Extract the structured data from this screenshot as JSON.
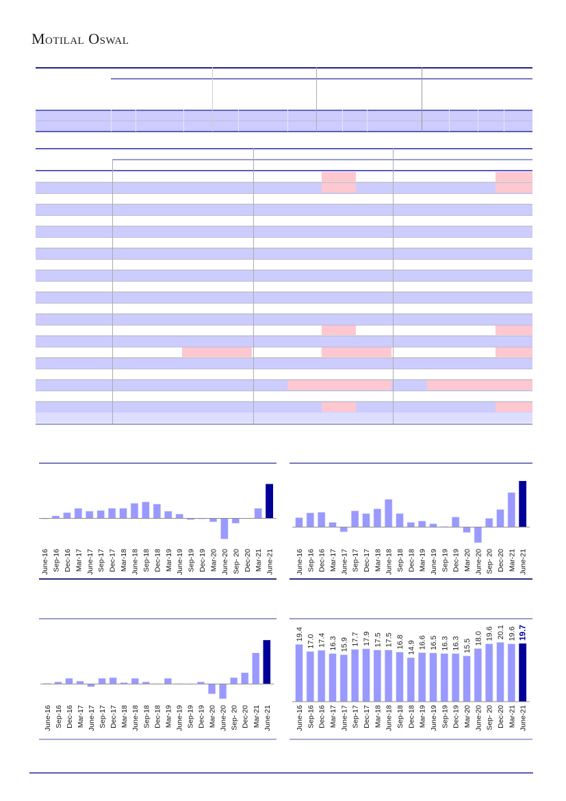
{
  "header": {
    "brand": "Motilal Oswal"
  },
  "colors": {
    "bar": "#9999ff",
    "highlight": "#000099",
    "row_band": "#ccccff",
    "alert_cell": "#ffc7d0",
    "rule": "#5b5bb5"
  },
  "chart_data": [
    {
      "type": "bar",
      "title": "",
      "categories": [
        "June-16",
        "Sep-16",
        "Dec-16",
        "Mar-17",
        "June-17",
        "Sep-17",
        "Dec-17",
        "Mar-18",
        "June-18",
        "Sep-18",
        "Dec-18",
        "Mar-19",
        "June-19",
        "Sep-19",
        "Dec-19",
        "Mar-20",
        "June-20",
        "Sep- 20",
        "Dec-20",
        "Mar-21",
        "June-21"
      ],
      "values": [
        -1,
        3.5,
        8,
        14,
        10,
        11,
        14,
        14,
        21,
        23,
        20,
        10,
        6,
        -2,
        -1,
        -5,
        -29,
        -7,
        0,
        14,
        48
      ],
      "xlabel": "",
      "ylabel": "",
      "ylim": [
        -35,
        55
      ],
      "grid": false,
      "legend": "none"
    },
    {
      "type": "bar",
      "title": "",
      "categories": [
        "June-16",
        "Sep-16",
        "Dec-16",
        "Mar-17",
        "June-17",
        "Sep-17",
        "Dec-17",
        "Mar-18",
        "June-18",
        "Sep-18",
        "Dec-18",
        "Mar-19",
        "June-19",
        "Sep-19",
        "Dec-19",
        "Mar-20",
        "June-20",
        "Sep- 20",
        "Dec-20",
        "Mar-21",
        "June-21"
      ],
      "values": [
        14,
        21,
        22,
        7,
        -7,
        24,
        20,
        27,
        41,
        20,
        7,
        9,
        5,
        1,
        15,
        -8,
        -23,
        13,
        26,
        51,
        68
      ],
      "xlabel": "",
      "ylabel": "",
      "ylim": [
        -30,
        75
      ],
      "grid": false,
      "legend": "none"
    },
    {
      "type": "bar",
      "title": "",
      "categories": [
        "June-16",
        "Sep-16",
        "Dec-16",
        "Mar-17",
        "June-17",
        "Sep-17",
        "Dec-17",
        "Mar-18",
        "June-18",
        "Sep-18",
        "Dec-18",
        "Mar-19",
        "June-19",
        "Sep-19",
        "Dec-19",
        "Mar-20",
        "June-20",
        "Sep- 20",
        "Dec-20",
        "Mar-21",
        "June-21"
      ],
      "values": [
        1,
        3,
        8,
        4,
        -4,
        8,
        9,
        2,
        8,
        3,
        0.5,
        8,
        0.5,
        0,
        3,
        -14,
        -21,
        9,
        16,
        44,
        62
      ],
      "xlabel": "",
      "ylabel": "",
      "ylim": [
        -25,
        68
      ],
      "grid": false,
      "legend": "none"
    },
    {
      "type": "bar",
      "title": "",
      "categories": [
        "June-16",
        "Sep-16",
        "Dec-16",
        "Mar-17",
        "June-17",
        "Sep-17",
        "Dec-17",
        "Mar-18",
        "June-18",
        "Sep-18",
        "Dec-18",
        "Mar-19",
        "June-19",
        "Sep-19",
        "Dec-19",
        "Mar-20",
        "June-20",
        "Sep- 20",
        "Dec-20",
        "Mar-21",
        "June-21"
      ],
      "values": [
        19.4,
        17.0,
        17.4,
        16.3,
        15.9,
        17.7,
        17.9,
        17.5,
        17.5,
        16.8,
        14.9,
        16.6,
        16.5,
        16.3,
        16.3,
        15.5,
        18.0,
        19.6,
        20.1,
        19.6,
        19.7
      ],
      "labels": [
        "19.4",
        "17.0",
        "17.4",
        "16.3",
        "15.9",
        "17.7",
        "17.9",
        "17.5",
        "17.5",
        "16.8",
        "14.9",
        "16.6",
        "16.5",
        "16.3",
        "16.3",
        "15.5",
        "18.0",
        "19.6",
        "20.1",
        "19.6",
        "19.7"
      ],
      "xlabel": "",
      "ylabel": "",
      "ylim": [
        0,
        26
      ],
      "grid": false,
      "legend": "none"
    }
  ]
}
